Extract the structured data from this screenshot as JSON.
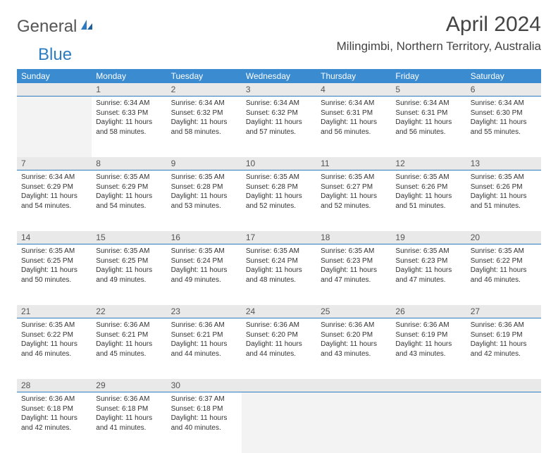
{
  "brand": {
    "part1": "General",
    "part2": "Blue"
  },
  "title": "April 2024",
  "location": "Milingimbi, Northern Territory, Australia",
  "colors": {
    "header_bg": "#3b8bd0",
    "header_text": "#ffffff",
    "daynum_bg": "#e9e9e9",
    "accent_line": "#2e7cc0",
    "blank_bg": "#f3f3f3",
    "text": "#333333",
    "logo_gray": "#555555",
    "logo_blue": "#2e7cc0"
  },
  "day_headers": [
    "Sunday",
    "Monday",
    "Tuesday",
    "Wednesday",
    "Thursday",
    "Friday",
    "Saturday"
  ],
  "weeks": [
    [
      {
        "n": "",
        "body": ""
      },
      {
        "n": "1",
        "body": "Sunrise: 6:34 AM\nSunset: 6:33 PM\nDaylight: 11 hours and 58 minutes."
      },
      {
        "n": "2",
        "body": "Sunrise: 6:34 AM\nSunset: 6:32 PM\nDaylight: 11 hours and 58 minutes."
      },
      {
        "n": "3",
        "body": "Sunrise: 6:34 AM\nSunset: 6:32 PM\nDaylight: 11 hours and 57 minutes."
      },
      {
        "n": "4",
        "body": "Sunrise: 6:34 AM\nSunset: 6:31 PM\nDaylight: 11 hours and 56 minutes."
      },
      {
        "n": "5",
        "body": "Sunrise: 6:34 AM\nSunset: 6:31 PM\nDaylight: 11 hours and 56 minutes."
      },
      {
        "n": "6",
        "body": "Sunrise: 6:34 AM\nSunset: 6:30 PM\nDaylight: 11 hours and 55 minutes."
      }
    ],
    [
      {
        "n": "7",
        "body": "Sunrise: 6:34 AM\nSunset: 6:29 PM\nDaylight: 11 hours and 54 minutes."
      },
      {
        "n": "8",
        "body": "Sunrise: 6:35 AM\nSunset: 6:29 PM\nDaylight: 11 hours and 54 minutes."
      },
      {
        "n": "9",
        "body": "Sunrise: 6:35 AM\nSunset: 6:28 PM\nDaylight: 11 hours and 53 minutes."
      },
      {
        "n": "10",
        "body": "Sunrise: 6:35 AM\nSunset: 6:28 PM\nDaylight: 11 hours and 52 minutes."
      },
      {
        "n": "11",
        "body": "Sunrise: 6:35 AM\nSunset: 6:27 PM\nDaylight: 11 hours and 52 minutes."
      },
      {
        "n": "12",
        "body": "Sunrise: 6:35 AM\nSunset: 6:26 PM\nDaylight: 11 hours and 51 minutes."
      },
      {
        "n": "13",
        "body": "Sunrise: 6:35 AM\nSunset: 6:26 PM\nDaylight: 11 hours and 51 minutes."
      }
    ],
    [
      {
        "n": "14",
        "body": "Sunrise: 6:35 AM\nSunset: 6:25 PM\nDaylight: 11 hours and 50 minutes."
      },
      {
        "n": "15",
        "body": "Sunrise: 6:35 AM\nSunset: 6:25 PM\nDaylight: 11 hours and 49 minutes."
      },
      {
        "n": "16",
        "body": "Sunrise: 6:35 AM\nSunset: 6:24 PM\nDaylight: 11 hours and 49 minutes."
      },
      {
        "n": "17",
        "body": "Sunrise: 6:35 AM\nSunset: 6:24 PM\nDaylight: 11 hours and 48 minutes."
      },
      {
        "n": "18",
        "body": "Sunrise: 6:35 AM\nSunset: 6:23 PM\nDaylight: 11 hours and 47 minutes."
      },
      {
        "n": "19",
        "body": "Sunrise: 6:35 AM\nSunset: 6:23 PM\nDaylight: 11 hours and 47 minutes."
      },
      {
        "n": "20",
        "body": "Sunrise: 6:35 AM\nSunset: 6:22 PM\nDaylight: 11 hours and 46 minutes."
      }
    ],
    [
      {
        "n": "21",
        "body": "Sunrise: 6:35 AM\nSunset: 6:22 PM\nDaylight: 11 hours and 46 minutes."
      },
      {
        "n": "22",
        "body": "Sunrise: 6:36 AM\nSunset: 6:21 PM\nDaylight: 11 hours and 45 minutes."
      },
      {
        "n": "23",
        "body": "Sunrise: 6:36 AM\nSunset: 6:21 PM\nDaylight: 11 hours and 44 minutes."
      },
      {
        "n": "24",
        "body": "Sunrise: 6:36 AM\nSunset: 6:20 PM\nDaylight: 11 hours and 44 minutes."
      },
      {
        "n": "25",
        "body": "Sunrise: 6:36 AM\nSunset: 6:20 PM\nDaylight: 11 hours and 43 minutes."
      },
      {
        "n": "26",
        "body": "Sunrise: 6:36 AM\nSunset: 6:19 PM\nDaylight: 11 hours and 43 minutes."
      },
      {
        "n": "27",
        "body": "Sunrise: 6:36 AM\nSunset: 6:19 PM\nDaylight: 11 hours and 42 minutes."
      }
    ],
    [
      {
        "n": "28",
        "body": "Sunrise: 6:36 AM\nSunset: 6:18 PM\nDaylight: 11 hours and 42 minutes."
      },
      {
        "n": "29",
        "body": "Sunrise: 6:36 AM\nSunset: 6:18 PM\nDaylight: 11 hours and 41 minutes."
      },
      {
        "n": "30",
        "body": "Sunrise: 6:37 AM\nSunset: 6:18 PM\nDaylight: 11 hours and 40 minutes."
      },
      {
        "n": "",
        "body": ""
      },
      {
        "n": "",
        "body": ""
      },
      {
        "n": "",
        "body": ""
      },
      {
        "n": "",
        "body": ""
      }
    ]
  ]
}
